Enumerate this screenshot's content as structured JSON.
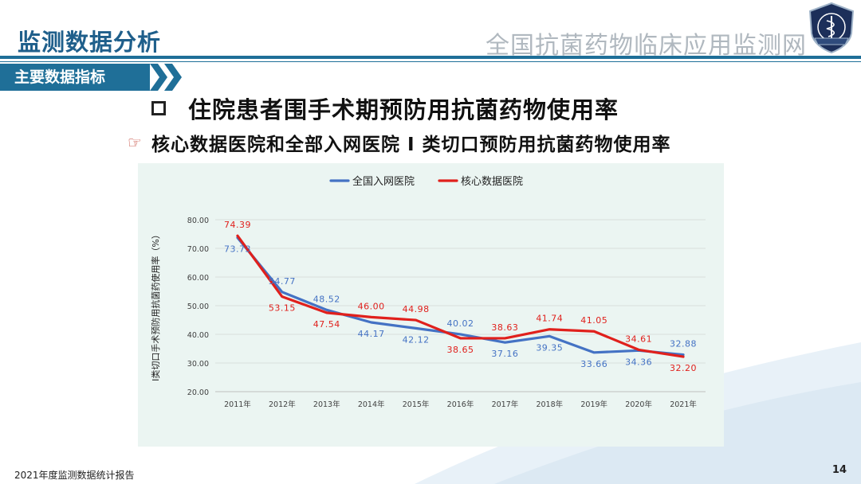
{
  "header": {
    "title": "监测数据分析",
    "org": "全国抗菌药物临床应用监测网"
  },
  "section_tag": "主要数据指标",
  "heading": "住院患者围手术期预防用抗菌药物使用率",
  "subheading": "核心数据医院和全部入网医院 Ⅰ 类切口预防用抗菌药物使用率",
  "footer": {
    "report": "2021年度监测数据统计报告",
    "page": "14"
  },
  "colors": {
    "brand": "#1f6f98",
    "series_all": "#4472c4",
    "series_core": "#e0201c",
    "panel": "#ebf5f2"
  },
  "chart_data": {
    "type": "line",
    "title": "",
    "xlabel": "",
    "ylabel": "Ⅰ类切口手术预防用抗菌药使用率（%）",
    "categories": [
      "2011年",
      "2012年",
      "2013年",
      "2014年",
      "2015年",
      "2016年",
      "2017年",
      "2018年",
      "2019年",
      "2020年",
      "2021年"
    ],
    "ylim": [
      20,
      80
    ],
    "yticks": [
      "20.00",
      "30.00",
      "40.00",
      "50.00",
      "60.00",
      "70.00",
      "80.00"
    ],
    "grid": true,
    "legend": "top-center",
    "series": [
      {
        "name": "全国入网医院",
        "color": "#4472c4",
        "values": [
          73.73,
          54.77,
          48.52,
          44.17,
          42.12,
          40.02,
          37.16,
          39.35,
          33.66,
          34.36,
          32.88
        ],
        "labels": [
          "73.73",
          "54.77",
          "48.52",
          "44.17",
          "42.12",
          "40.02",
          "37.16",
          "39.35",
          "33.66",
          "34.36",
          "32.88"
        ]
      },
      {
        "name": "核心数据医院",
        "color": "#e0201c",
        "values": [
          74.39,
          53.15,
          47.54,
          46.0,
          44.98,
          38.65,
          38.63,
          41.74,
          41.05,
          34.61,
          32.2
        ],
        "labels": [
          "74.39",
          "53.15",
          "47.54",
          "46.00",
          "44.98",
          "38.65",
          "38.63",
          "41.74",
          "41.05",
          "34.61",
          "32.20"
        ]
      }
    ]
  }
}
